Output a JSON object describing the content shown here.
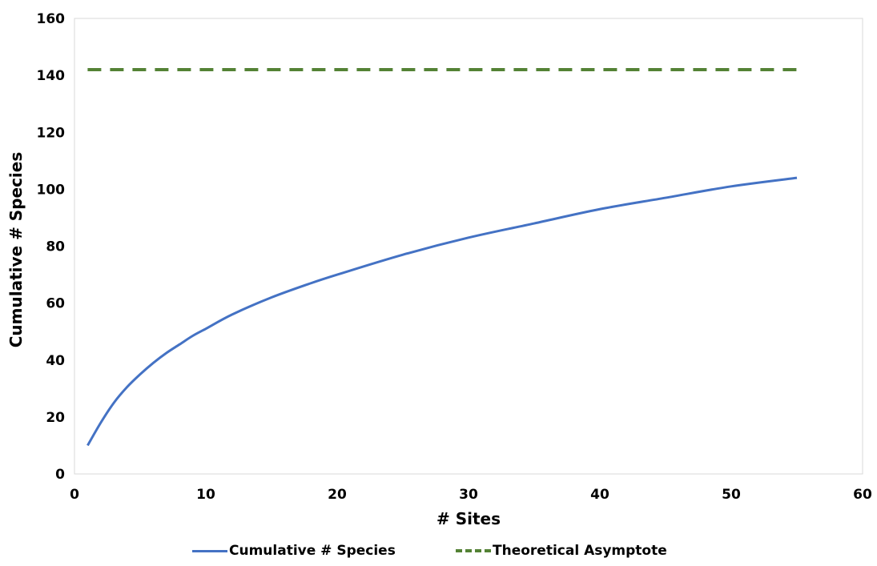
{
  "chart_data": {
    "type": "line",
    "xlabel": "# Sites",
    "ylabel": "Cumulative # Species",
    "xlim": [
      0,
      60
    ],
    "ylim": [
      0,
      160
    ],
    "xticks": [
      0,
      10,
      20,
      30,
      40,
      50,
      60
    ],
    "yticks": [
      0,
      20,
      40,
      60,
      80,
      100,
      120,
      140,
      160
    ],
    "grid": false,
    "legend_position": "bottom",
    "series": [
      {
        "name": "Cumulative # Species",
        "style": "solid",
        "color": "#4472C4",
        "x": [
          1,
          2,
          3,
          4,
          5,
          6,
          7,
          8,
          9,
          10,
          12,
          15,
          18,
          20,
          25,
          30,
          35,
          40,
          45,
          50,
          55
        ],
        "y": [
          10,
          18,
          25,
          30.5,
          35,
          39,
          42.5,
          45.5,
          48.5,
          51,
          56,
          62,
          67,
          70,
          77,
          83,
          88,
          93,
          97,
          101,
          104
        ]
      },
      {
        "name": "Theoretical Asymptote",
        "style": "dashed",
        "color": "#548235",
        "x": [
          1,
          55
        ],
        "y": [
          142,
          142
        ]
      }
    ]
  }
}
